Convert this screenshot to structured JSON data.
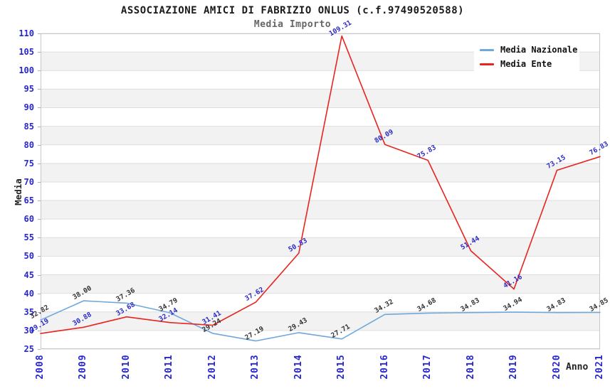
{
  "chart_data": {
    "type": "line",
    "title": "ASSOCIAZIONE AMICI DI FABRIZIO ONLUS (c.f.97490520588)",
    "subtitle": "Media Importo",
    "xlabel": "Anno",
    "ylabel": "Media",
    "ylim": [
      25,
      110
    ],
    "ytick_step": 5,
    "grid": "horizontal-bands",
    "band_fill_color": "#f2f2f2",
    "gridline_color": "#dedede",
    "axis_tick_label_color": "#2626cc",
    "legend_position": "top-right",
    "categories": [
      "2008",
      "2009",
      "2010",
      "2011",
      "2012",
      "2013",
      "2014",
      "2015",
      "2016",
      "2017",
      "2018",
      "2019",
      "2020",
      "2021"
    ],
    "series": [
      {
        "name": "Media Nazionale",
        "color": "#6fa8dc",
        "label_color": "#333333",
        "values": [
          32.82,
          38.0,
          37.36,
          34.79,
          29.24,
          27.19,
          29.43,
          27.71,
          34.32,
          34.68,
          34.83,
          34.94,
          34.83,
          34.85
        ]
      },
      {
        "name": "Media Ente",
        "color": "#e8241f",
        "label_color": "#2b2bc8",
        "values": [
          29.19,
          30.88,
          33.68,
          32.14,
          31.41,
          37.62,
          50.83,
          109.31,
          80.09,
          75.83,
          51.44,
          41.16,
          73.15,
          76.83
        ]
      }
    ]
  }
}
